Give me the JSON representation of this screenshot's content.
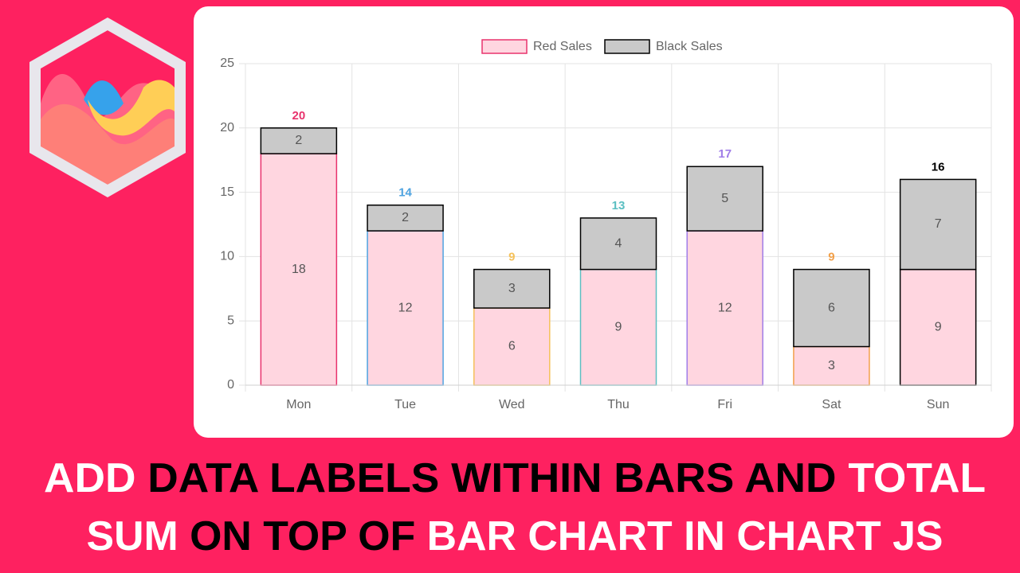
{
  "chart_data": {
    "type": "stacked-bar",
    "categories": [
      "Mon",
      "Tue",
      "Wed",
      "Thu",
      "Fri",
      "Sat",
      "Sun"
    ],
    "series": [
      {
        "name": "Red Sales",
        "color": "#ffd6e0",
        "border_colors": [
          "#e8336d",
          "#4ea3e0",
          "#f5c15a",
          "#5bbfc2",
          "#a07ee8",
          "#f2a04a",
          "#000000"
        ],
        "values": [
          18,
          12,
          6,
          9,
          12,
          3,
          9
        ]
      },
      {
        "name": "Black Sales",
        "color": "#c9c9c9",
        "border_color": "#000000",
        "values": [
          2,
          2,
          3,
          4,
          5,
          6,
          7
        ]
      }
    ],
    "totals": [
      20,
      14,
      9,
      13,
      17,
      9,
      16
    ],
    "ylim": [
      0,
      25
    ],
    "yticks": [
      0,
      5,
      10,
      15,
      20,
      25
    ],
    "grid": true
  },
  "headline": [
    [
      {
        "text": "ADD ",
        "color": "#ffffff"
      },
      {
        "text": "DATA LABELS WITHIN BARS AND ",
        "color": "#000000"
      },
      {
        "text": "TOTAL",
        "color": "#ffffff"
      }
    ],
    [
      {
        "text": "SUM ",
        "color": "#ffffff"
      },
      {
        "text": "ON TOP OF ",
        "color": "#000000"
      },
      {
        "text": "BAR CHART IN CHART JS",
        "color": "#ffffff"
      }
    ]
  ]
}
